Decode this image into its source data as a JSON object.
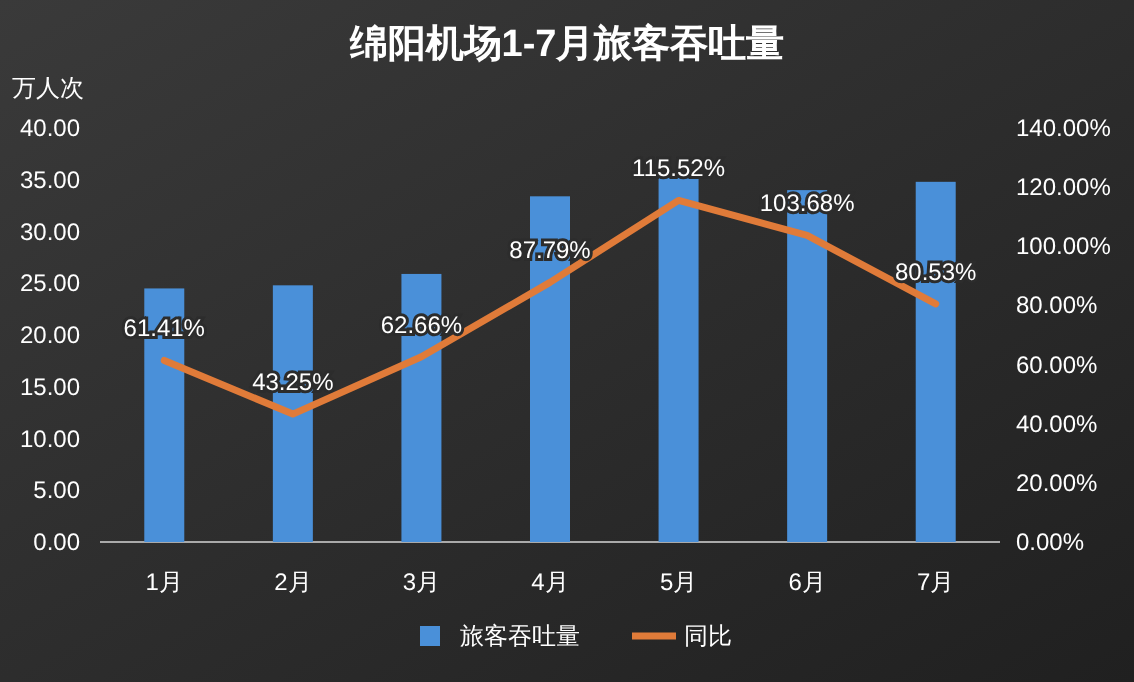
{
  "chart_data": {
    "type": "bar",
    "title": "绵阳机场1-7月旅客吞吐量",
    "ylabel": "万人次",
    "categories": [
      "1月",
      "2月",
      "3月",
      "4月",
      "5月",
      "6月",
      "7月"
    ],
    "series": [
      {
        "name": "旅客吞吐量",
        "color": "#4a90d9",
        "values": [
          24.5,
          24.8,
          25.9,
          33.4,
          35.2,
          34.0,
          34.8
        ]
      },
      {
        "name": "同比",
        "type": "line",
        "axis": "y2",
        "color": "#e07b39",
        "values": [
          61.41,
          43.25,
          62.66,
          87.79,
          115.52,
          103.68,
          80.53
        ],
        "value_labels": [
          "61.41%",
          "43.25%",
          "62.66%",
          "87.79%",
          "115.52%",
          "103.68%",
          "80.53%"
        ]
      }
    ],
    "ylim": [
      0,
      40
    ],
    "yticks": [
      {
        "value": 0,
        "label": "0.00"
      },
      {
        "value": 5,
        "label": "5.00"
      },
      {
        "value": 10,
        "label": "10.00"
      },
      {
        "value": 15,
        "label": "15.00"
      },
      {
        "value": 20,
        "label": "20.00"
      },
      {
        "value": 25,
        "label": "25.00"
      },
      {
        "value": 30,
        "label": "30.00"
      },
      {
        "value": 35,
        "label": "35.00"
      },
      {
        "value": 40,
        "label": "40.00"
      }
    ],
    "y2lim": [
      0,
      140
    ],
    "y2ticks": [
      {
        "value": 0,
        "label": "0.00%"
      },
      {
        "value": 20,
        "label": "20.00%"
      },
      {
        "value": 40,
        "label": "40.00%"
      },
      {
        "value": 60,
        "label": "60.00%"
      },
      {
        "value": 80,
        "label": "80.00%"
      },
      {
        "value": 100,
        "label": "100.00%"
      },
      {
        "value": 120,
        "label": "120.00%"
      },
      {
        "value": 140,
        "label": "140.00%"
      }
    ],
    "legend": "bottom",
    "grid": false
  }
}
